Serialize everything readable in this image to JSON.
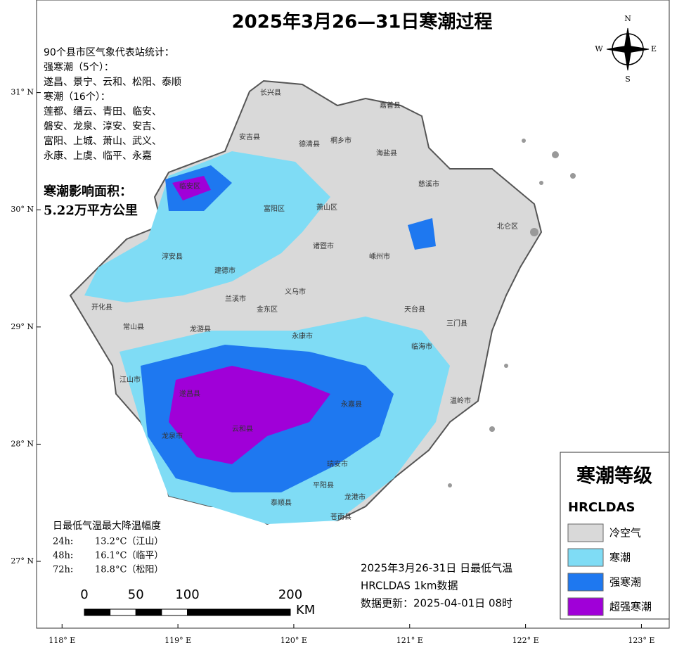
{
  "title": "2025年3月26—31日寒潮过程",
  "stats": {
    "heading": "90个县市区气象代表站统计：",
    "groups": [
      {
        "label": "强寒潮（5个）：",
        "lines": [
          "遂昌、景宁、云和、松阳、泰顺"
        ]
      },
      {
        "label": "寒潮（16个）：",
        "lines": [
          "莲都、缙云、青田、临安、",
          "磐安、龙泉、淳安、安吉、",
          "富阳、上城、萧山、武义、",
          "永康、上虞、临平、永嘉"
        ]
      }
    ]
  },
  "area": {
    "label": "寒潮影响面积：",
    "value": "5.22万平方公里"
  },
  "drop": {
    "heading": "日最低气温最大降温幅度",
    "rows": [
      [
        "24h:",
        "13.2°C（江山）"
      ],
      [
        "48h:",
        "16.1°C（临平）"
      ],
      [
        "72h:",
        "18.8°C（松阳）"
      ]
    ]
  },
  "legend": {
    "title": "寒潮等级",
    "subtitle": "HRCLDAS",
    "items": [
      {
        "label": "冷空气",
        "color": "#d9d9d9"
      },
      {
        "label": "寒潮",
        "color": "#7fdcf5"
      },
      {
        "label": "强寒潮",
        "color": "#1e78f0"
      },
      {
        "label": "超强寒潮",
        "color": "#a000d8"
      }
    ]
  },
  "note": [
    "2025年3月26-31日 日最低气温",
    "HRCLDAS 1km数据",
    "数据更新：2025-04-01日 08时"
  ],
  "scale_bar": {
    "ticks": [
      0,
      50,
      100,
      200
    ],
    "unit": "KM"
  },
  "compass": [
    "N",
    "E",
    "S",
    "W"
  ],
  "axes": {
    "lon_lim": [
      117.78,
      123.24
    ],
    "lat_lim": [
      26.43,
      31.79
    ],
    "lat_ticks": [
      {
        "value": 31,
        "label": "31° N"
      },
      {
        "value": 30,
        "label": "30° N"
      },
      {
        "value": 29,
        "label": "29° N"
      },
      {
        "value": 28,
        "label": "28° N"
      },
      {
        "value": 27,
        "label": "27° N"
      }
    ],
    "lon_ticks": [
      {
        "value": 118,
        "label": "118° E"
      },
      {
        "value": 119,
        "label": "119° E"
      },
      {
        "value": 120,
        "label": "120° E"
      },
      {
        "value": 121,
        "label": "121° E"
      },
      {
        "value": 122,
        "label": "122° E"
      },
      {
        "value": 123,
        "label": "123° E"
      }
    ]
  },
  "places": [
    "长兴县",
    "安吉县",
    "德清县",
    "嘉善县",
    "海盐县",
    "桐乡市",
    "临安区",
    "富阳区",
    "萧山区",
    "慈溪市",
    "北仑区",
    "诸暨市",
    "嵊州市",
    "淳安县",
    "建德市",
    "开化县",
    "兰溪市",
    "义乌市",
    "金东区",
    "天台县",
    "常山县",
    "龙游县",
    "永康市",
    "三门县",
    "临海市",
    "江山市",
    "遂昌县",
    "永嘉县",
    "龙泉市",
    "云和县",
    "瑞安市",
    "平阳县",
    "泰顺县",
    "苍南县",
    "温岭市",
    "龙港市"
  ]
}
